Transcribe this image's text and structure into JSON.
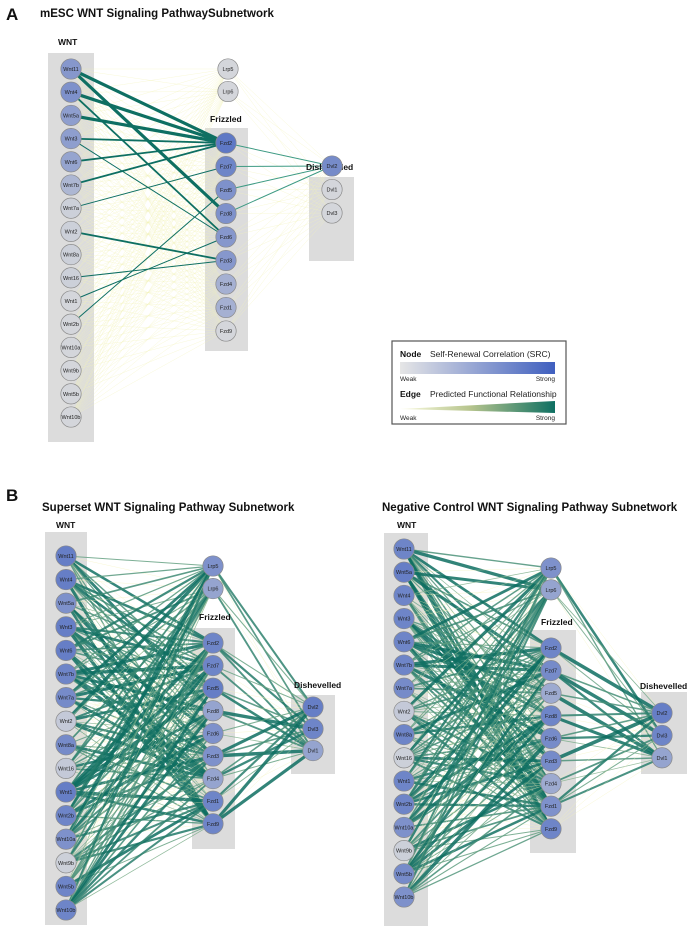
{
  "panels": [
    {
      "letter": "A",
      "title": "mESC WNT Signaling PathwaySubnetwork",
      "groups": {
        "wnt": {
          "title": "WNT",
          "nodes": [
            {
              "label": "Wnt11",
              "src": 0.55
            },
            {
              "label": "Wnt4",
              "src": 0.6
            },
            {
              "label": "Wnt5a",
              "src": 0.5
            },
            {
              "label": "Wnt3",
              "src": 0.5
            },
            {
              "label": "Wnt6",
              "src": 0.45
            },
            {
              "label": "Wnt7b",
              "src": 0.3
            },
            {
              "label": "Wnt7a",
              "src": 0.1
            },
            {
              "label": "Wnt2",
              "src": 0.1
            },
            {
              "label": "Wnt8a",
              "src": 0.1
            },
            {
              "label": "Wnt16",
              "src": 0.1
            },
            {
              "label": "Wnt1",
              "src": 0.05
            },
            {
              "label": "Wnt2b",
              "src": 0.05
            },
            {
              "label": "Wnt10a",
              "src": 0.05
            },
            {
              "label": "Wnt9b",
              "src": 0.05
            },
            {
              "label": "Wnt5b",
              "src": 0.05
            },
            {
              "label": "Wnt10b",
              "src": 0.05
            }
          ]
        },
        "lrp": {
          "title": "",
          "nodes": [
            {
              "label": "Lrp5",
              "src": 0.05
            },
            {
              "label": "Lrp6",
              "src": 0.05
            }
          ]
        },
        "frizzled": {
          "title": "Frizzled",
          "nodes": [
            {
              "label": "Fzd2",
              "src": 0.8
            },
            {
              "label": "Fzd7",
              "src": 0.7
            },
            {
              "label": "Fzd5",
              "src": 0.6
            },
            {
              "label": "Fzd8",
              "src": 0.6
            },
            {
              "label": "Fzd6",
              "src": 0.55
            },
            {
              "label": "Fzd3",
              "src": 0.55
            },
            {
              "label": "Fzd4",
              "src": 0.35
            },
            {
              "label": "Fzd1",
              "src": 0.35
            },
            {
              "label": "Fzd9",
              "src": 0.05
            }
          ]
        },
        "dishevelled": {
          "title": "Dishevelled",
          "nodes": [
            {
              "label": "Dvl2",
              "src": 0.65
            },
            {
              "label": "Dvl1",
              "src": 0.05
            },
            {
              "label": "Dvl3",
              "src": 0.05
            }
          ]
        }
      },
      "strong_edges": [
        [
          0,
          0
        ],
        [
          1,
          0
        ],
        [
          0,
          3
        ],
        [
          2,
          0
        ],
        [
          3,
          0
        ],
        [
          4,
          0
        ],
        [
          1,
          4
        ],
        [
          5,
          0
        ],
        [
          7,
          5
        ],
        [
          9,
          5
        ],
        [
          10,
          4
        ],
        [
          6,
          1
        ],
        [
          3,
          4
        ],
        [
          11,
          2
        ]
      ],
      "fz_dvl_edges": [
        [
          0,
          0
        ],
        [
          1,
          0
        ],
        [
          2,
          0
        ],
        [
          3,
          0
        ]
      ]
    },
    {
      "letter": "B",
      "title": "Superset WNT Signaling Pathway Subnetwork",
      "groups": {
        "wnt": {
          "title": "WNT",
          "nodes": [
            {
              "label": "Wnt11",
              "src": 0.75
            },
            {
              "label": "Wnt4",
              "src": 0.75
            },
            {
              "label": "Wnt5a",
              "src": 0.6
            },
            {
              "label": "Wnt3",
              "src": 0.75
            },
            {
              "label": "Wnt6",
              "src": 0.75
            },
            {
              "label": "Wnt7b",
              "src": 0.7
            },
            {
              "label": "Wnt7a",
              "src": 0.65
            },
            {
              "label": "Wnt2",
              "src": 0.15
            },
            {
              "label": "Wnt8a",
              "src": 0.65
            },
            {
              "label": "Wnt16",
              "src": 0.15
            },
            {
              "label": "Wnt1",
              "src": 0.75
            },
            {
              "label": "Wnt2b",
              "src": 0.7
            },
            {
              "label": "Wnt10a",
              "src": 0.6
            },
            {
              "label": "Wnt9b",
              "src": 0.1
            },
            {
              "label": "Wnt5b",
              "src": 0.7
            },
            {
              "label": "Wnt10b",
              "src": 0.7
            }
          ]
        },
        "lrp": {
          "title": "",
          "nodes": [
            {
              "label": "Lrp5",
              "src": 0.6
            },
            {
              "label": "Lrp6",
              "src": 0.45
            }
          ]
        },
        "frizzled": {
          "title": "Frizzled",
          "nodes": [
            {
              "label": "Fzd2",
              "src": 0.7
            },
            {
              "label": "Fzd7",
              "src": 0.7
            },
            {
              "label": "Fzd5",
              "src": 0.75
            },
            {
              "label": "Fzd8",
              "src": 0.45
            },
            {
              "label": "Fzd6",
              "src": 0.6
            },
            {
              "label": "Fzd3",
              "src": 0.6
            },
            {
              "label": "Fzd4",
              "src": 0.45
            },
            {
              "label": "Fzd1",
              "src": 0.7
            },
            {
              "label": "Fzd9",
              "src": 0.7
            }
          ]
        },
        "dishevelled": {
          "title": "Dishevelled",
          "nodes": [
            {
              "label": "Dvl2",
              "src": 0.75
            },
            {
              "label": "Dvl3",
              "src": 0.7
            },
            {
              "label": "Dvl1",
              "src": 0.45
            }
          ]
        }
      }
    },
    {
      "letter": "",
      "title": "Negative Control WNT Signaling Pathway Subnetwork",
      "groups": {
        "wnt": {
          "title": "WNT",
          "nodes": [
            {
              "label": "Wnt11",
              "src": 0.7
            },
            {
              "label": "Wnt5a",
              "src": 0.75
            },
            {
              "label": "Wnt4",
              "src": 0.7
            },
            {
              "label": "Wnt3",
              "src": 0.7
            },
            {
              "label": "Wnt6",
              "src": 0.7
            },
            {
              "label": "Wnt7b",
              "src": 0.7
            },
            {
              "label": "Wnt7a",
              "src": 0.65
            },
            {
              "label": "Wnt2",
              "src": 0.15
            },
            {
              "label": "Wnt8a",
              "src": 0.7
            },
            {
              "label": "Wnt16",
              "src": 0.1
            },
            {
              "label": "Wnt1",
              "src": 0.7
            },
            {
              "label": "Wnt2b",
              "src": 0.7
            },
            {
              "label": "Wnt10a",
              "src": 0.6
            },
            {
              "label": "Wnt9b",
              "src": 0.1
            },
            {
              "label": "Wnt5b",
              "src": 0.65
            },
            {
              "label": "Wnt10b",
              "src": 0.6
            }
          ]
        },
        "lrp": {
          "title": "",
          "nodes": [
            {
              "label": "Lrp5",
              "src": 0.6
            },
            {
              "label": "Lrp6",
              "src": 0.45
            }
          ]
        },
        "frizzled": {
          "title": "Frizzled",
          "nodes": [
            {
              "label": "Fzd2",
              "src": 0.7
            },
            {
              "label": "Fzd7",
              "src": 0.65
            },
            {
              "label": "Fzd5",
              "src": 0.4
            },
            {
              "label": "Fzd8",
              "src": 0.7
            },
            {
              "label": "Fzd6",
              "src": 0.65
            },
            {
              "label": "Fzd3",
              "src": 0.65
            },
            {
              "label": "Fzd4",
              "src": 0.4
            },
            {
              "label": "Fzd1",
              "src": 0.6
            },
            {
              "label": "Fzd9",
              "src": 0.7
            }
          ]
        },
        "dishevelled": {
          "title": "Dishevelled",
          "nodes": [
            {
              "label": "Dvl2",
              "src": 0.75
            },
            {
              "label": "Dvl3",
              "src": 0.7
            },
            {
              "label": "Dvl1",
              "src": 0.45
            }
          ]
        }
      }
    }
  ],
  "legend": {
    "node_key": "Node",
    "node_desc": "Self-Renewal Correlation (SRC)",
    "node_weak": "Weak",
    "node_strong": "Strong",
    "edge_key": "Edge",
    "edge_desc": "Predicted Functional Relationship",
    "edge_weak": "Weak",
    "edge_strong": "Strong"
  },
  "colors": {
    "node_weak": "#dcdcdc",
    "node_strong": "#3f5fbf",
    "edge_weak": "#f3f2b8",
    "edge_strong": "#0e6f62",
    "group_bg": "#dcdcdc"
  }
}
